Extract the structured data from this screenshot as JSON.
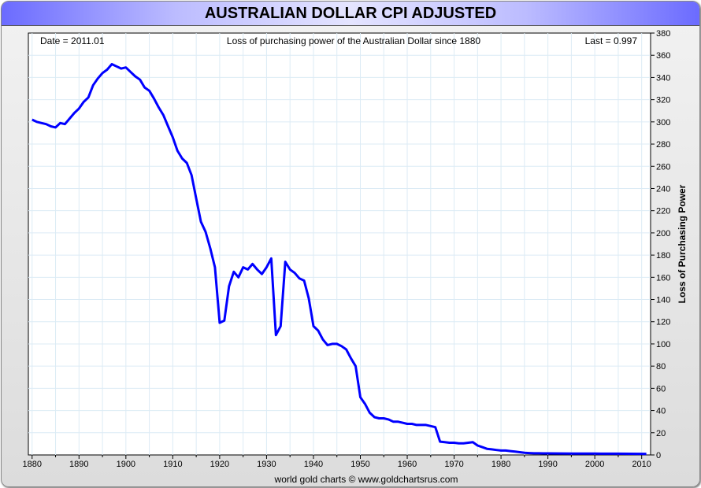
{
  "window": {
    "title": "AUSTRALIAN DOLLAR CPI ADJUSTED"
  },
  "chart_data": {
    "type": "line",
    "title": "AUSTRALIAN DOLLAR CPI ADJUSTED",
    "subtitle": "Loss of purchasing power of the Australian Dollar since 1880",
    "date_label": "Date = 2011.01",
    "last_label": "Last = 0.997",
    "ylabel": "Loss of Purchasing Power",
    "xlabel": "",
    "footer": "world gold charts © www.goldchartsrus.com",
    "xlim": [
      1879.2,
      2011.9
    ],
    "ylim": [
      0,
      380
    ],
    "grid": true,
    "x_ticks": [
      1880,
      1890,
      1900,
      1910,
      1920,
      1930,
      1940,
      1950,
      1960,
      1970,
      1980,
      1990,
      2000,
      2010
    ],
    "y_ticks": [
      0,
      20,
      40,
      60,
      80,
      100,
      120,
      140,
      160,
      180,
      200,
      220,
      240,
      260,
      280,
      300,
      320,
      340,
      360,
      380
    ],
    "series": [
      {
        "name": "Australian Dollar CPI adjusted",
        "color": "#0000ff",
        "x": [
          1880,
          1881,
          1882,
          1883,
          1884,
          1885,
          1886,
          1887,
          1888,
          1889,
          1890,
          1891,
          1892,
          1893,
          1894,
          1895,
          1896,
          1897,
          1898,
          1899,
          1900,
          1901,
          1902,
          1903,
          1904,
          1905,
          1906,
          1907,
          1908,
          1909,
          1910,
          1911,
          1912,
          1913,
          1914,
          1915,
          1916,
          1917,
          1918,
          1919,
          1920,
          1921,
          1922,
          1923,
          1924,
          1925,
          1926,
          1927,
          1928,
          1929,
          1930,
          1931,
          1932,
          1933,
          1934,
          1935,
          1936,
          1937,
          1938,
          1939,
          1940,
          1941,
          1942,
          1943,
          1944,
          1945,
          1946,
          1947,
          1948,
          1949,
          1950,
          1951,
          1952,
          1953,
          1954,
          1955,
          1956,
          1957,
          1958,
          1959,
          1960,
          1961,
          1962,
          1963,
          1964,
          1965,
          1966,
          1967,
          1968,
          1969,
          1970,
          1971,
          1972,
          1973,
          1974,
          1975,
          1976,
          1977,
          1978,
          1979,
          1980,
          1981,
          1982,
          1983,
          1984,
          1985,
          1986,
          1987,
          1988,
          1989,
          1990,
          1995,
          2000,
          2005,
          2010,
          2011
        ],
        "y": [
          302,
          300,
          299,
          298,
          296,
          295,
          299,
          298,
          303,
          308,
          312,
          318,
          322,
          333,
          339,
          344,
          347,
          352,
          350,
          348,
          349,
          345,
          341,
          338,
          331,
          328,
          321,
          313,
          306,
          296,
          286,
          274,
          267,
          263,
          252,
          231,
          210,
          201,
          186,
          169,
          119,
          121,
          152,
          165,
          160,
          169,
          167,
          172,
          167,
          163,
          169,
          177,
          108,
          116,
          174,
          167,
          164,
          159,
          157,
          141,
          116,
          112,
          104,
          99,
          100,
          100,
          98,
          95,
          87,
          80,
          52,
          46,
          38,
          34,
          33,
          33,
          32,
          30,
          30,
          29,
          28,
          28,
          27,
          27,
          27,
          26,
          25,
          12,
          11.5,
          11,
          11,
          10.5,
          10.5,
          11,
          11.5,
          8.5,
          7,
          5.5,
          5,
          4.5,
          4,
          4,
          3.5,
          3,
          2.5,
          2,
          1.7,
          1.5,
          1.5,
          1.4,
          1.4,
          1.3,
          1.2,
          1.1,
          1.0,
          0.997
        ]
      }
    ]
  }
}
